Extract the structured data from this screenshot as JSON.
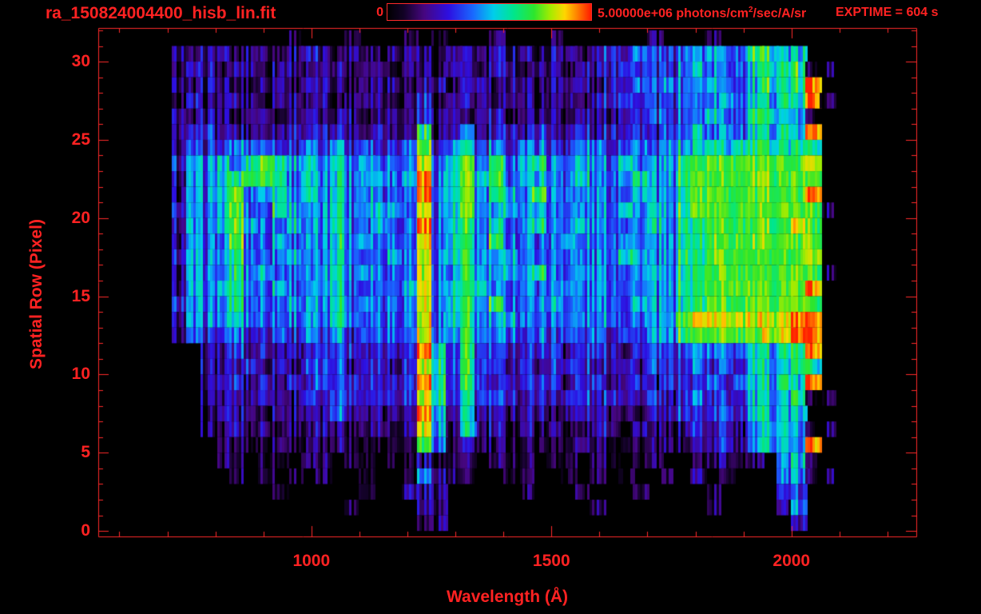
{
  "header": {
    "title": "ra_150824004400_hisb_lin.fit",
    "exptime": "EXPTIME = 604 s",
    "colorbar": {
      "min_label": "0",
      "max_value": "5.00000e+06",
      "unit_prefix": " photons/cm",
      "unit_sup": "2",
      "unit_suffix": "/sec/A/sr"
    }
  },
  "colors": {
    "accent_red": "#ff2222",
    "frame_red": "#ff2a2a",
    "background": "#000000"
  },
  "chart_data": {
    "type": "heatmap",
    "title": "ra_150824004400_hisb_lin.fit",
    "xlabel": "Wavelength (Å)",
    "ylabel": "Spatial Row (Pixel)",
    "xlim": [
      556,
      2260
    ],
    "ylim": [
      -0.35,
      32.15
    ],
    "x_ticks_major": [
      1000,
      1500,
      2000
    ],
    "x_minor_step_A": 100,
    "y_ticks_major": [
      0,
      5,
      10,
      15,
      20,
      25,
      30
    ],
    "y_minor_step": 1,
    "grid": false,
    "legend_position": "top-colorbar",
    "colorbar_scale": {
      "min": 0,
      "max": 5000000,
      "units": "photons/cm2/sec/A/sr",
      "scaling": "linear"
    },
    "exposure_time_s": 604,
    "intensity_encoding": "each cell digit 0-9 maps linearly to 0 .. 5e6 photons/cm2/sec/A/sr",
    "wavelength_start_A": 560,
    "wavelength_bin_A": 30,
    "row_count": 32,
    "annotations": [
      {
        "feature": "bright emission line (Lyman-alpha)",
        "wavelength_A": 1216,
        "rows": "0-25",
        "peak": "orange-red saturated blobs rows 5-11 and 19-23"
      },
      {
        "feature": "secondary emission line",
        "wavelength_A": 1300,
        "rows": "5-24"
      },
      {
        "feature": "narrow cyan line",
        "wavelength_A": 1040,
        "rows": "4-23"
      },
      {
        "feature": "arc-shaped green feature",
        "wavelength_A": "800-930",
        "rows": "13-23"
      },
      {
        "feature": "bright green continuum block",
        "wavelength_A": "1760-2060",
        "rows": "12-24"
      },
      {
        "feature": "yellow-orange horizontal band",
        "wavelength_A": "1760-2060",
        "row": 13
      },
      {
        "feature": "red saturated right edge column",
        "wavelength_A": 2045,
        "rows": "5-28"
      },
      {
        "feature": "faint purple speckle background",
        "rows": "25-31 and 0-7"
      }
    ],
    "colormap_stops": [
      [
        0.0,
        "#000000"
      ],
      [
        0.08,
        "#120226"
      ],
      [
        0.18,
        "#460680"
      ],
      [
        0.3,
        "#2d0fe1"
      ],
      [
        0.42,
        "#1969ff"
      ],
      [
        0.52,
        "#00cdeb"
      ],
      [
        0.62,
        "#00e68c"
      ],
      [
        0.72,
        "#2de62d"
      ],
      [
        0.8,
        "#a5eb00"
      ],
      [
        0.87,
        "#ffd700"
      ],
      [
        0.93,
        "#ff8200"
      ],
      [
        1.0,
        "#ff1900"
      ]
    ],
    "rows_top_to_bottom": [
      [
        "00000",
        "00000",
        "00010",
        "00100",
        "01010",
        "00100",
        "01000",
        "00010",
        "00100",
        "00000",
        "0"
      ],
      [
        "00000",
        "21221",
        "22122",
        "21221",
        "22212",
        "21222",
        "12212",
        "33433",
        "44544",
        "66550",
        "0"
      ],
      [
        "00000",
        "12212",
        "21221",
        "22122",
        "12212",
        "21221",
        "22122",
        "34333",
        "45444",
        "56661",
        "1"
      ],
      [
        "00000",
        "21221",
        "12212",
        "22122",
        "21221",
        "22122",
        "12221",
        "33434",
        "44544",
        "56669",
        "0"
      ],
      [
        "00000",
        "12122",
        "21221",
        "21222",
        "12312",
        "22122",
        "12212",
        "34333",
        "44454",
        "55659",
        "1"
      ],
      [
        "00000",
        "21221",
        "22122",
        "12212",
        "22322",
        "12212",
        "22122",
        "23333",
        "44544",
        "66541",
        "0"
      ],
      [
        "00000",
        "22322",
        "22232",
        "23223",
        "22622",
        "42232",
        "32232",
        "33323",
        "45454",
        "55659",
        "0"
      ],
      [
        "00000",
        "23334",
        "44334",
        "35343",
        "34734",
        "53434",
        "43344",
        "34434",
        "55656",
        "66666",
        "0"
      ],
      [
        "00000",
        "34454",
        "67655",
        "46454",
        "44845",
        "74645",
        "64454",
        "46444",
        "67777",
        "77778",
        "0"
      ],
      [
        "00000",
        "24456",
        "77645",
        "46455",
        "45945",
        "75645",
        "54454",
        "45644",
        "67777",
        "77777",
        "0"
      ],
      [
        "00000",
        "24457",
        "45645",
        "46454",
        "44945",
        "74654",
        "74444",
        "44544",
        "67777",
        "77779",
        "0"
      ],
      [
        "00000",
        "34457",
        "44654",
        "46455",
        "54845",
        "74454",
        "54444",
        "46454",
        "67777",
        "77777",
        "1"
      ],
      [
        "00000",
        "24457",
        "54454",
        "46445",
        "44945",
        "64544",
        "64454",
        "44454",
        "66777",
        "77787",
        "0"
      ],
      [
        "00000",
        "24447",
        "44544",
        "46454",
        "44845",
        "64644",
        "44544",
        "45444",
        "66777",
        "77777",
        "0"
      ],
      [
        "00000",
        "34446",
        "44454",
        "46444",
        "54845",
        "64454",
        "44444",
        "46544",
        "66777",
        "77778",
        "0"
      ],
      [
        "00000",
        "24446",
        "45444",
        "46454",
        "44844",
        "64454",
        "64444",
        "44454",
        "66777",
        "77777",
        "1"
      ],
      [
        "00000",
        "24456",
        "44544",
        "46444",
        "45845",
        "65444",
        "44544",
        "44444",
        "66777",
        "77779",
        "0"
      ],
      [
        "00000",
        "34446",
        "44454",
        "46454",
        "44845",
        "64644",
        "45444",
        "44544",
        "66777",
        "77777",
        "0"
      ],
      [
        "00000",
        "24445",
        "44444",
        "46444",
        "44845",
        "64454",
        "44444",
        "44444",
        "78888",
        "88899",
        "0"
      ],
      [
        "00000",
        "23334",
        "33434",
        "35344",
        "44844",
        "64443",
        "43434",
        "34344",
        "67777",
        "78899",
        "0"
      ],
      [
        "00000",
        "00223",
        "23232",
        "34333",
        "33963",
        "63333",
        "33233",
        "32333",
        "34444",
        "55669",
        "0"
      ],
      [
        "00000",
        "00222",
        "32323",
        "34233",
        "23863",
        "63323",
        "23332",
        "33233",
        "34343",
        "55566",
        "0"
      ],
      [
        "00000",
        "00223",
        "23232",
        "34333",
        "33963",
        "63233",
        "33233",
        "23323",
        "33434",
        "55659",
        "0"
      ],
      [
        "00000",
        "00222",
        "23223",
        "24333",
        "33863",
        "53332",
        "32332",
        "33232",
        "34333",
        "55561",
        "1"
      ],
      [
        "00000",
        "00122",
        "21222",
        "24222",
        "22952",
        "52222",
        "21222",
        "22122",
        "33343",
        "55550",
        "0"
      ],
      [
        "00000",
        "00112",
        "12121",
        "22122",
        "12851",
        "51212",
        "12112",
        "21211",
        "23232",
        "45541",
        "1"
      ],
      [
        "00000",
        "00011",
        "11211",
        "12111",
        "11741",
        "21111",
        "11121",
        "11111",
        "12232",
        "45549",
        "0"
      ],
      [
        "00000",
        "00011",
        "01101",
        "10110",
        "11211",
        "10111",
        "01101",
        "10110",
        "01121",
        "10451",
        "0"
      ],
      [
        "00000",
        "00001",
        "01010",
        "10010",
        "01421",
        "10011",
        "00101",
        "01001",
        "02010",
        "00441",
        "1"
      ],
      [
        "00000",
        "00000",
        "00100",
        "00010",
        "02220",
        "00001",
        "00010",
        "00100",
        "00100",
        "00330",
        "0"
      ],
      [
        "00000",
        "00000",
        "00000",
        "00100",
        "00220",
        "00000",
        "00001",
        "00000",
        "00100",
        "00240",
        "0"
      ],
      [
        "00000",
        "00000",
        "00000",
        "00000",
        "00120",
        "00000",
        "00000",
        "00000",
        "00000",
        "00020",
        "0"
      ]
    ]
  }
}
